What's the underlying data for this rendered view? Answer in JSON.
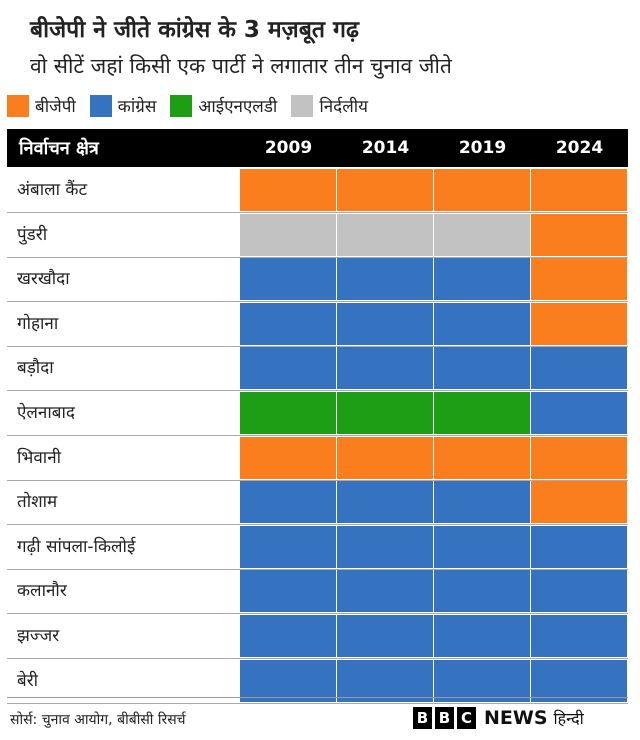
{
  "title": "बीजेपी ने जीते कांग्रेस के 3 मज़बूत गढ़",
  "subtitle": "वो सीटें जहां किसी एक पार्टी ने लगातार तीन चुनाव जीते",
  "legend": [
    {
      "label": "बीजेपी",
      "color": "#fa7e1e"
    },
    {
      "label": "कांग्रेस",
      "color": "#3572c0"
    },
    {
      "label": "आईएनएलडी",
      "color": "#1e9e14"
    },
    {
      "label": "निर्दलीय",
      "color": "#c2c2c2"
    }
  ],
  "colors": {
    "bjp": "#fa7e1e",
    "congress": "#3572c0",
    "inld": "#1e9e14",
    "independent": "#c2c2c2"
  },
  "chart_data": {
    "type": "table",
    "header_label": "निर्वाचन क्षेत्र",
    "columns": [
      "2009",
      "2014",
      "2019",
      "2024"
    ],
    "rows": [
      {
        "name": "अंबाला कैंट",
        "values": [
          "bjp",
          "bjp",
          "bjp",
          "bjp"
        ]
      },
      {
        "name": "पुंडरी",
        "values": [
          "independent",
          "independent",
          "independent",
          "bjp"
        ]
      },
      {
        "name": "खरखौदा",
        "values": [
          "congress",
          "congress",
          "congress",
          "bjp"
        ]
      },
      {
        "name": "गोहाना",
        "values": [
          "congress",
          "congress",
          "congress",
          "bjp"
        ]
      },
      {
        "name": "बड़ौदा",
        "values": [
          "congress",
          "congress",
          "congress",
          "congress"
        ]
      },
      {
        "name": "ऐलनाबाद",
        "values": [
          "inld",
          "inld",
          "inld",
          "congress"
        ]
      },
      {
        "name": "भिवानी",
        "values": [
          "bjp",
          "bjp",
          "bjp",
          "bjp"
        ]
      },
      {
        "name": "तोशाम",
        "values": [
          "congress",
          "congress",
          "congress",
          "bjp"
        ]
      },
      {
        "name": "गढ़ी सांपला-किलोई",
        "values": [
          "congress",
          "congress",
          "congress",
          "congress"
        ]
      },
      {
        "name": "कलानौर",
        "values": [
          "congress",
          "congress",
          "congress",
          "congress"
        ]
      },
      {
        "name": "झज्जर",
        "values": [
          "congress",
          "congress",
          "congress",
          "congress"
        ]
      },
      {
        "name": "बेरी",
        "values": [
          "congress",
          "congress",
          "congress",
          "congress"
        ]
      }
    ]
  },
  "footer": {
    "source": "सोर्स: चुनाव आयोग, बीबीसी रिसर्च",
    "brand_letters": [
      "B",
      "B",
      "C"
    ],
    "brand_news": "NEWS",
    "brand_hindi": "हिन्दी"
  }
}
